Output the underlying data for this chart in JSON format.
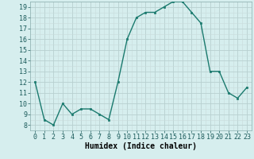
{
  "x": [
    0,
    1,
    2,
    3,
    4,
    5,
    6,
    7,
    8,
    9,
    10,
    11,
    12,
    13,
    14,
    15,
    16,
    17,
    18,
    19,
    20,
    21,
    22,
    23
  ],
  "y": [
    12,
    8.5,
    8,
    10,
    9,
    9.5,
    9.5,
    9,
    8.5,
    12,
    16,
    18,
    18.5,
    18.5,
    19,
    19.5,
    19.5,
    18.5,
    17.5,
    13,
    13,
    11,
    10.5,
    11.5
  ],
  "line_color": "#1a7a6e",
  "marker_color": "#1a7a6e",
  "bg_color": "#d6eeee",
  "grid_color_major": "#b8d0d0",
  "grid_color_minor": "#c8dcdc",
  "xlabel": "Humidex (Indice chaleur)",
  "xlim": [
    -0.5,
    23.5
  ],
  "ylim": [
    7.5,
    19.5
  ],
  "yticks": [
    8,
    9,
    10,
    11,
    12,
    13,
    14,
    15,
    16,
    17,
    18,
    19
  ],
  "xticks": [
    0,
    1,
    2,
    3,
    4,
    5,
    6,
    7,
    8,
    9,
    10,
    11,
    12,
    13,
    14,
    15,
    16,
    17,
    18,
    19,
    20,
    21,
    22,
    23
  ],
  "xlabel_fontsize": 7,
  "tick_fontsize": 6
}
